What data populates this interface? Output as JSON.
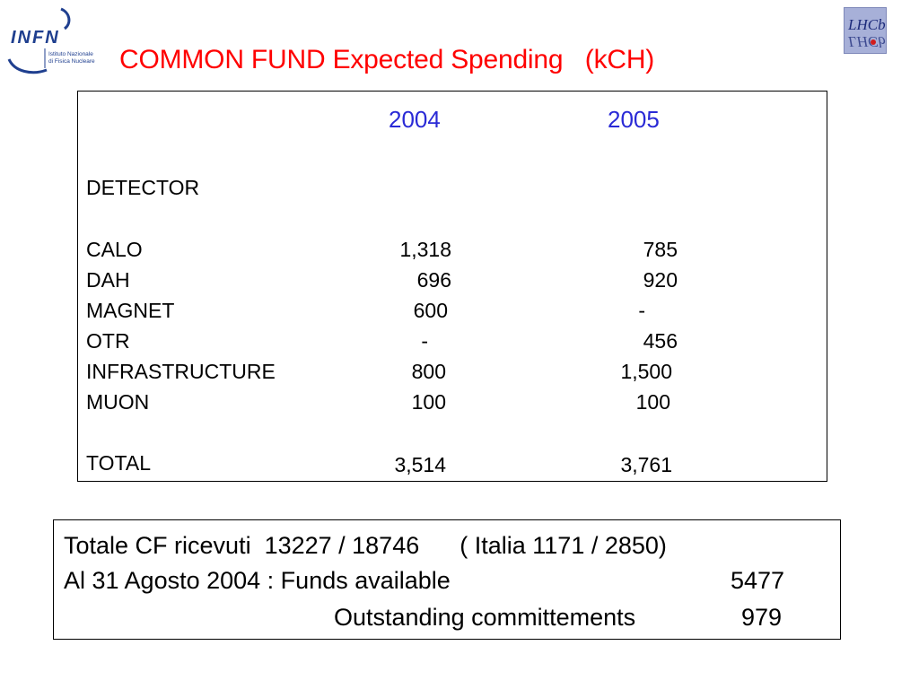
{
  "header": {
    "title": "COMMON FUND Expected Spending   (kCH)",
    "infn_logo": {
      "name": "INFN",
      "subtitle_line1": "Istituto Nazionale",
      "subtitle_line2": "di Fisica Nucleare"
    },
    "lhcb_logo": {
      "name": "LHCb"
    },
    "colors": {
      "title": "#ff0000",
      "years": "#2a2ad6"
    }
  },
  "table": {
    "years": [
      "2004",
      "2005"
    ],
    "section_label": "DETECTOR",
    "rows": [
      {
        "label": "CALO",
        "v2004": "1,318",
        "v2005": "785"
      },
      {
        "label": "DAH",
        "v2004": "696",
        "v2005": "920"
      },
      {
        "label": "MAGNET",
        "v2004": "600",
        "v2005": "-"
      },
      {
        "label": "OTR",
        "v2004": "-",
        "v2005": "456"
      },
      {
        "label": "INFRASTRUCTURE",
        "v2004": "800",
        "v2005": "1,500"
      },
      {
        "label": "MUON",
        "v2004": "100",
        "v2005": "100"
      }
    ],
    "total": {
      "label": "TOTAL",
      "v2004": "3,514",
      "v2005": "3,761"
    }
  },
  "summary": {
    "line1": "Totale CF ricevuti  13227 / 18746      ( Italia 1171 / 2850)",
    "line2_label": "Al 31 Agosto 2004 : Funds available",
    "line2_value": "5477",
    "line3_label": "Outstanding committements",
    "line3_value": "979"
  }
}
